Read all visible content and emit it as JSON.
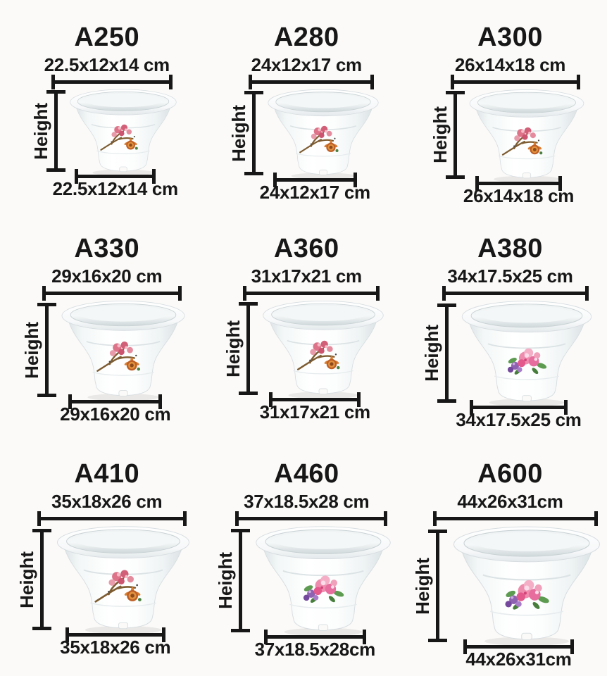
{
  "labels": {
    "height_label": "Height"
  },
  "colors": {
    "background": "#fbfaf8",
    "text": "#171717",
    "measure_line": "#171717",
    "pot_body": "#ffffff"
  },
  "products": [
    {
      "model": "A250",
      "dim_top": "22.5x12x14 cm",
      "dim_bottom": "22.5x12x14 cm",
      "decal": "plum-blossom"
    },
    {
      "model": "A280",
      "dim_top": "24x12x17 cm",
      "dim_bottom": "24x12x17 cm",
      "decal": "plum-blossom"
    },
    {
      "model": "A300",
      "dim_top": "26x14x18 cm",
      "dim_bottom": "26x14x18 cm",
      "decal": "plum-blossom"
    },
    {
      "model": "A330",
      "dim_top": "29x16x20 cm",
      "dim_bottom": "29x16x20 cm",
      "decal": "plum-blossom"
    },
    {
      "model": "A360",
      "dim_top": "31x17x21 cm",
      "dim_bottom": "31x17x21 cm",
      "decal": "plum-blossom"
    },
    {
      "model": "A380",
      "dim_top": "34x17.5x25 cm",
      "dim_bottom": "34x17.5x25 cm",
      "decal": "peony"
    },
    {
      "model": "A410",
      "dim_top": "35x18x26 cm",
      "dim_bottom": "35x18x26 cm",
      "decal": "plum-blossom"
    },
    {
      "model": "A460",
      "dim_top": "37x18.5x28 cm",
      "dim_bottom": "37x18.5x28cm",
      "decal": "peony"
    },
    {
      "model": "A600",
      "dim_top": "44x26x31cm",
      "dim_bottom": "44x26x31cm",
      "decal": "peony"
    }
  ]
}
